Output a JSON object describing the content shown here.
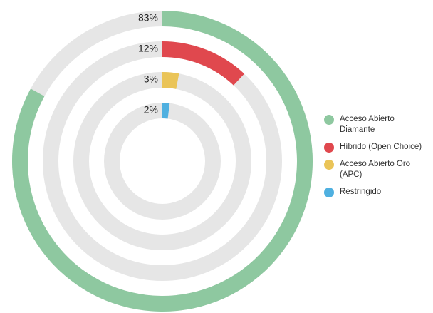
{
  "chart_data": {
    "type": "radialBar",
    "categories": [
      "Acceso Abierto Diamante",
      "Híbrido (Open Choice)",
      "Acceso Abierto Oro (APC)",
      "Restringido"
    ],
    "values": [
      83,
      12,
      3,
      2
    ],
    "value_labels": [
      "83%",
      "12%",
      "3%",
      "2%"
    ],
    "colors": [
      "#8ec8a0",
      "#e0484e",
      "#eac458",
      "#4fb0e0"
    ],
    "ylim": [
      0,
      100
    ],
    "legend": "right"
  }
}
